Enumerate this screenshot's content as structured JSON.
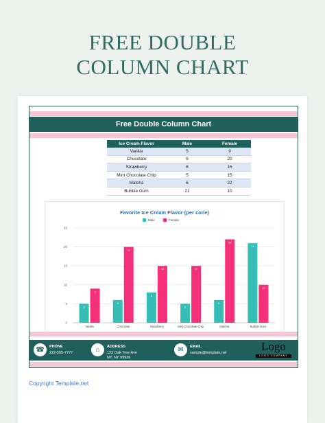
{
  "hero_title_line1": "FREE DOUBLE",
  "hero_title_line2": "COLUMN CHART",
  "banner_title": "Free Double Column Chart",
  "table": {
    "headers": [
      "Ice Cream Flavor",
      "Male",
      "Female"
    ],
    "rows": [
      [
        "Vanilla",
        "5",
        "9"
      ],
      [
        "Chocolate",
        "6",
        "20"
      ],
      [
        "Strawberry",
        "8",
        "15"
      ],
      [
        "Mint Chocolate Chip",
        "5",
        "15"
      ],
      [
        "Matcha",
        "6",
        "22"
      ],
      [
        "Bubble Gum",
        "21",
        "10"
      ]
    ]
  },
  "chart_data": {
    "type": "bar",
    "title": "Favorite Ice Cream Flavor (per cone)",
    "categories": [
      "Vanilla",
      "Chocolate",
      "Strawberry",
      "Mint Chocolate Chip",
      "Matcha",
      "Bubble Gum"
    ],
    "series": [
      {
        "name": "Male",
        "values": [
          5,
          6,
          8,
          5,
          6,
          21
        ],
        "color": "#36bdb5"
      },
      {
        "name": "Female",
        "values": [
          9,
          20,
          15,
          15,
          22,
          10
        ],
        "color": "#f5307a"
      }
    ],
    "ylim": [
      0,
      25
    ],
    "yticks": [
      0,
      5,
      10,
      15,
      20,
      25
    ],
    "grid": true,
    "legend": "top-center",
    "data_labels": true
  },
  "footer": {
    "phone_label": "PHONE",
    "phone_value": "222-555-7777",
    "address_label": "ADDRESS",
    "address_line1": "123 Oak Tree Ave",
    "address_line2": "NY, NY 99936",
    "email_label": "EMAIL",
    "email_value": "sample@template.net",
    "logo_word": "Logo",
    "logo_sub": "LOGO COMPANY",
    "icons": [
      "phone-icon",
      "address-icon",
      "email-icon"
    ]
  },
  "copyright": "Copyright Template.net",
  "colors": {
    "teal": "#1f5f5c",
    "pink": "#f6c6d6",
    "male": "#36bdb5",
    "female": "#f5307a"
  }
}
